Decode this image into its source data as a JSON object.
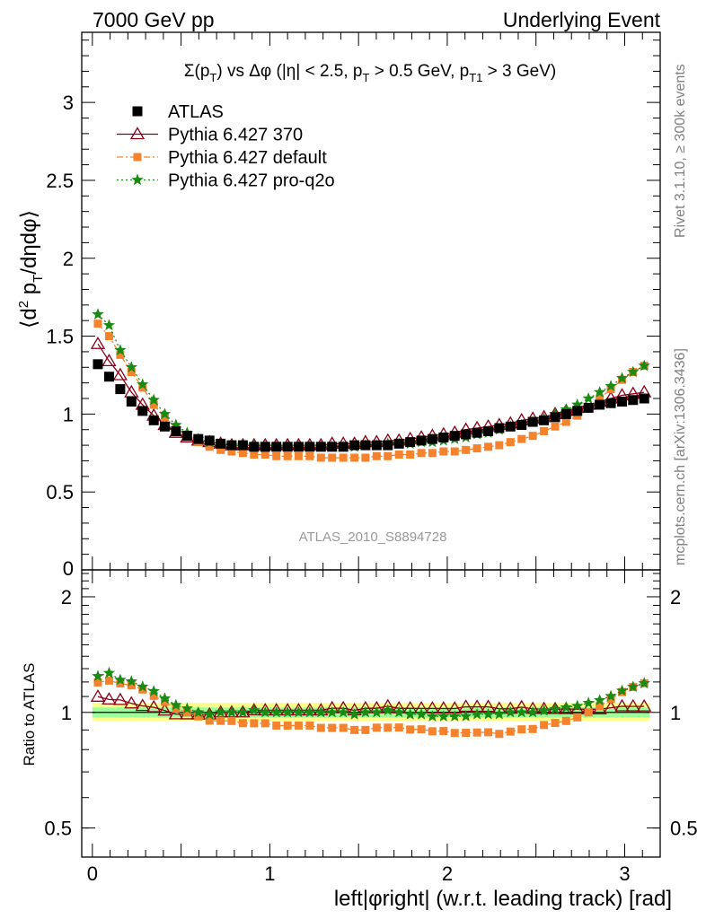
{
  "header": {
    "left": "7000 GeV pp",
    "right": "Underlying Event"
  },
  "side_labels": {
    "top": "Rivet 3.1.10, ≥ 300k events",
    "bottom": "mcplots.cern.ch [arXiv:1306.3436]"
  },
  "analysis_label": "ATLAS_2010_S8894728",
  "colors": {
    "atlas": "#000000",
    "p370": "#8b0015",
    "pdefault": "#f5822d",
    "pq2o": "#1a8a14",
    "band_inner": "#9cff9c",
    "band_outer": "#ffff8a"
  },
  "chart_data": [
    {
      "type": "scatter",
      "panel": "main",
      "title": "Σ(p_T) vs Δφ (|η| < 2.5, p_T > 0.5 GeV, p_T1 > 3 GeV)",
      "ylabel": "⟨d² p_T/dηdφ⟩",
      "xlim": [
        -0.06,
        3.2
      ],
      "ylim": [
        0,
        3.45
      ],
      "y_ticks": [
        "0.5",
        "1",
        "1.5",
        "2",
        "2.5",
        "3"
      ],
      "y_tick_values": [
        0.5,
        1,
        1.5,
        2,
        2.5,
        3
      ],
      "y_zero_label": "0",
      "legend_position": "top-left",
      "x": [
        0.031,
        0.094,
        0.157,
        0.22,
        0.283,
        0.346,
        0.408,
        0.471,
        0.534,
        0.597,
        0.66,
        0.723,
        0.785,
        0.848,
        0.911,
        0.974,
        1.037,
        1.1,
        1.162,
        1.225,
        1.288,
        1.351,
        1.414,
        1.477,
        1.539,
        1.602,
        1.665,
        1.728,
        1.791,
        1.854,
        1.916,
        1.979,
        2.042,
        2.105,
        2.168,
        2.231,
        2.293,
        2.356,
        2.419,
        2.482,
        2.545,
        2.608,
        2.67,
        2.733,
        2.796,
        2.859,
        2.922,
        2.985,
        3.047,
        3.11
      ],
      "series": [
        {
          "name": "ATLAS",
          "marker": "square",
          "values": [
            1.32,
            1.24,
            1.16,
            1.08,
            1.02,
            0.96,
            0.92,
            0.89,
            0.86,
            0.84,
            0.83,
            0.81,
            0.8,
            0.8,
            0.79,
            0.79,
            0.79,
            0.79,
            0.79,
            0.79,
            0.79,
            0.79,
            0.79,
            0.8,
            0.8,
            0.8,
            0.8,
            0.81,
            0.82,
            0.83,
            0.84,
            0.85,
            0.86,
            0.87,
            0.88,
            0.89,
            0.91,
            0.92,
            0.93,
            0.95,
            0.96,
            0.98,
            1.0,
            1.02,
            1.04,
            1.06,
            1.07,
            1.08,
            1.09,
            1.1
          ]
        },
        {
          "name": "Pythia 6.427 370",
          "marker": "triangle-open",
          "values": [
            1.45,
            1.34,
            1.25,
            1.14,
            1.06,
            0.99,
            0.93,
            0.88,
            0.85,
            0.83,
            0.82,
            0.81,
            0.8,
            0.8,
            0.8,
            0.8,
            0.8,
            0.8,
            0.8,
            0.8,
            0.8,
            0.81,
            0.81,
            0.81,
            0.82,
            0.82,
            0.83,
            0.83,
            0.84,
            0.85,
            0.86,
            0.87,
            0.88,
            0.9,
            0.91,
            0.92,
            0.93,
            0.94,
            0.96,
            0.97,
            0.98,
            1.0,
            1.02,
            1.04,
            1.06,
            1.08,
            1.1,
            1.12,
            1.13,
            1.14
          ]
        },
        {
          "name": "Pythia 6.427 default",
          "marker": "square-small",
          "values": [
            1.58,
            1.5,
            1.38,
            1.27,
            1.17,
            1.06,
            0.98,
            0.91,
            0.86,
            0.82,
            0.79,
            0.77,
            0.76,
            0.75,
            0.74,
            0.74,
            0.73,
            0.73,
            0.73,
            0.73,
            0.72,
            0.72,
            0.72,
            0.72,
            0.72,
            0.73,
            0.73,
            0.74,
            0.74,
            0.75,
            0.75,
            0.76,
            0.76,
            0.77,
            0.78,
            0.79,
            0.8,
            0.82,
            0.84,
            0.86,
            0.89,
            0.92,
            0.95,
            0.99,
            1.04,
            1.1,
            1.16,
            1.22,
            1.27,
            1.31
          ]
        },
        {
          "name": "Pythia 6.427 pro-q2o",
          "marker": "star",
          "values": [
            1.64,
            1.57,
            1.41,
            1.3,
            1.19,
            1.09,
            1.0,
            0.93,
            0.88,
            0.84,
            0.82,
            0.81,
            0.8,
            0.8,
            0.8,
            0.79,
            0.79,
            0.79,
            0.79,
            0.79,
            0.79,
            0.79,
            0.79,
            0.79,
            0.8,
            0.8,
            0.81,
            0.81,
            0.81,
            0.82,
            0.82,
            0.83,
            0.84,
            0.85,
            0.87,
            0.88,
            0.9,
            0.92,
            0.93,
            0.95,
            0.97,
            1.0,
            1.03,
            1.06,
            1.1,
            1.14,
            1.18,
            1.23,
            1.27,
            1.31
          ]
        }
      ]
    },
    {
      "type": "scatter",
      "panel": "ratio",
      "xlabel": "left|φright| (w.r.t. leading track) [rad]",
      "ylabel": "Ratio to ATLAS",
      "x_ticks": [
        "0",
        "1",
        "2",
        "3"
      ],
      "x_tick_values": [
        0,
        1,
        2,
        3
      ],
      "y_ticks": [
        "0.5",
        "1",
        "2"
      ],
      "y_tick_values": [
        0.5,
        1,
        2
      ],
      "ylog": true,
      "ylim": [
        0.42,
        2.35
      ],
      "band_inner": [
        0.97,
        1.03
      ],
      "band_outer": [
        0.95,
        1.06
      ]
    }
  ]
}
